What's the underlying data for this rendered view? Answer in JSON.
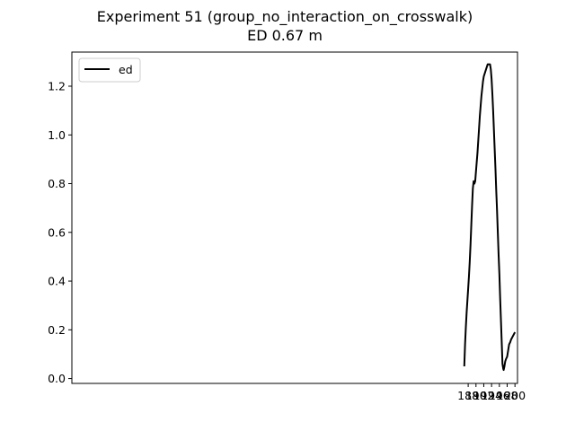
{
  "chart_data": {
    "type": "line",
    "title": "Experiment 51 (group_no_interaction_on_crosswalk)",
    "subtitle": "ED 0.67 m",
    "xlabel": "",
    "ylabel": "",
    "xlim": [
      86.35,
      200.65
    ],
    "ylim": [
      -0.02,
      1.34
    ],
    "x_ticks": [
      188,
      190,
      192,
      194,
      196,
      198,
      200
    ],
    "y_ticks": [
      0.0,
      0.2,
      0.4,
      0.6,
      0.8,
      1.0,
      1.2
    ],
    "x_tick_labels": [
      "188",
      "190",
      "192",
      "194",
      "196",
      "198",
      "200"
    ],
    "y_tick_labels": [
      "0.0",
      "0.2",
      "0.4",
      "0.6",
      "0.8",
      "1.0",
      "1.2"
    ],
    "grid": false,
    "legend": {
      "position": "top-left",
      "entries": [
        "ed"
      ]
    },
    "colors": {
      "series": "#000000",
      "frame": "#000000",
      "legend_border": "#cccccc"
    },
    "series": [
      {
        "name": "ed",
        "color": "#000000",
        "x": [
          187.0,
          187.2,
          187.4,
          187.6,
          187.8,
          188.0,
          188.2,
          188.4,
          188.6,
          188.8,
          189.0,
          189.2,
          189.4,
          189.6,
          189.8,
          190.0,
          190.2,
          190.4,
          190.6,
          190.8,
          191.0,
          191.2,
          191.4,
          191.6,
          191.8,
          192.0,
          192.2,
          192.4,
          192.6,
          192.8,
          193.0,
          193.2,
          193.4,
          193.6,
          193.8,
          194.0,
          194.2,
          194.4,
          194.6,
          194.8,
          195.0,
          195.2,
          195.4,
          195.6,
          195.8,
          196.0,
          196.2,
          196.4,
          196.6,
          196.8,
          197.0,
          197.1,
          197.3,
          197.5,
          197.7,
          198.0,
          198.3,
          198.5,
          198.8,
          199.0,
          199.5,
          200.0
        ],
        "y": [
          0.05,
          0.14,
          0.21,
          0.27,
          0.32,
          0.37,
          0.42,
          0.48,
          0.55,
          0.63,
          0.71,
          0.78,
          0.81,
          0.8,
          0.81,
          0.85,
          0.89,
          0.93,
          0.98,
          1.03,
          1.08,
          1.12,
          1.16,
          1.19,
          1.22,
          1.24,
          1.25,
          1.26,
          1.27,
          1.28,
          1.29,
          1.29,
          1.29,
          1.29,
          1.27,
          1.23,
          1.17,
          1.1,
          1.02,
          0.94,
          0.86,
          0.77,
          0.69,
          0.6,
          0.51,
          0.43,
          0.33,
          0.24,
          0.15,
          0.06,
          0.04,
          0.035,
          0.05,
          0.07,
          0.08,
          0.09,
          0.12,
          0.14,
          0.15,
          0.16,
          0.175,
          0.19
        ]
      }
    ]
  }
}
